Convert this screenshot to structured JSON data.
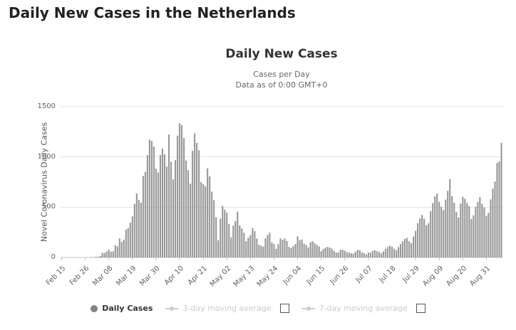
{
  "page": {
    "title": "Daily New Cases in the Netherlands"
  },
  "chart": {
    "title": "Daily New Cases",
    "subtitle1": "Cases per Day",
    "subtitle2": "Data as of 0:00 GMT+0",
    "y_axis_title": "Novel Coronavirus Daily Cases",
    "legend": {
      "daily": "Daily Cases",
      "ma3": "3-day moving average",
      "ma7": "7-day moving average"
    },
    "colors": {
      "bar": "#989898",
      "grid": "#e6e6e6",
      "axis": "#c6c6c6",
      "legend_active": "#333333",
      "legend_disabled": "#cccccc"
    }
  },
  "chart_data": {
    "type": "bar",
    "title": "Daily New Cases",
    "subtitle": "Cases per Day",
    "xlabel": "",
    "ylabel": "Novel Coronavirus Daily Cases",
    "ylim": [
      0,
      1500
    ],
    "y_ticks": [
      0,
      500,
      1000,
      1500
    ],
    "grid": true,
    "legend_position": "bottom",
    "x_start_label": "Feb 15",
    "x_tick_interval_days": 11,
    "x_tick_labels": [
      "Feb 15",
      "Feb 26",
      "Mar 08",
      "Mar 19",
      "Mar 30",
      "Apr 10",
      "Apr 21",
      "May 02",
      "May 13",
      "May 24",
      "Jun 04",
      "Jun 15",
      "Jun 26",
      "Jul 07",
      "Jul 18",
      "Jul 29",
      "Aug 09",
      "Aug 20",
      "Aug 31"
    ],
    "values": [
      0,
      0,
      0,
      0,
      0,
      0,
      0,
      0,
      0,
      0,
      0,
      0,
      1,
      1,
      5,
      3,
      8,
      6,
      15,
      44,
      46,
      60,
      77,
      56,
      61,
      121,
      111,
      190,
      155,
      176,
      278,
      292,
      346,
      409,
      534,
      637,
      573,
      545,
      811,
      852,
      1019,
      1172,
      1159,
      1104,
      884,
      845,
      1019,
      1083,
      1026,
      904,
      1224,
      952,
      777,
      969,
      1213,
      1335,
      1316,
      1188,
      964,
      868,
      734,
      1061,
      1235,
      1140,
      1066,
      750,
      729,
      708,
      887,
      806,
      655,
      571,
      400,
      171,
      386,
      514,
      475,
      445,
      335,
      199,
      317,
      361,
      455,
      319,
      289,
      245,
      161,
      196,
      222,
      292,
      262,
      189,
      125,
      117,
      108,
      190,
      223,
      246,
      150,
      133,
      86,
      133,
      190,
      176,
      188,
      164,
      105,
      94,
      115,
      135,
      210,
      173,
      178,
      138,
      124,
      100,
      153,
      162,
      142,
      126,
      110,
      63,
      85,
      97,
      106,
      98,
      88,
      67,
      48,
      51,
      77,
      76,
      68,
      53,
      48,
      43,
      39,
      58,
      76,
      72,
      49,
      44,
      30,
      50,
      46,
      64,
      72,
      62,
      55,
      41,
      60,
      86,
      104,
      117,
      107,
      88,
      72,
      103,
      134,
      160,
      185,
      194,
      161,
      141,
      207,
      265,
      341,
      389,
      423,
      385,
      321,
      340,
      460,
      541,
      608,
      636,
      553,
      505,
      471,
      576,
      663,
      781,
      609,
      544,
      452,
      398,
      537,
      604,
      585,
      542,
      511,
      382,
      419,
      505,
      553,
      601,
      534,
      497,
      413,
      444,
      578,
      685,
      755,
      940,
      955,
      1140
    ]
  }
}
